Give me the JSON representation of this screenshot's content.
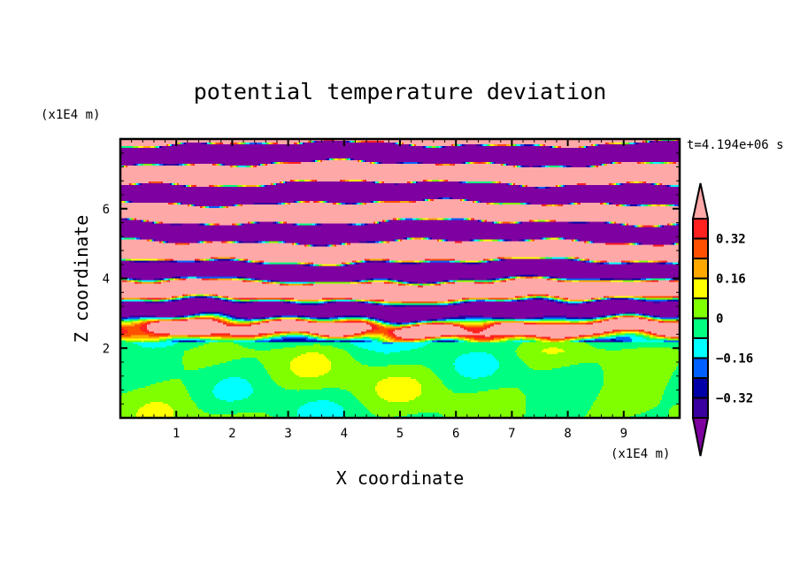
{
  "chart_data": {
    "type": "heatmap",
    "title": "potential temperature deviation",
    "xlabel": "X coordinate",
    "ylabel": "Z coordinate",
    "x_unit": "(x1E4 m)",
    "y_unit": "(x1E4 m)",
    "time_label": "t=4.194e+06 s",
    "xlim": [
      0,
      10
    ],
    "ylim": [
      0,
      8
    ],
    "x_ticks": [
      1,
      2,
      3,
      4,
      5,
      6,
      7,
      8,
      9
    ],
    "y_ticks": [
      2,
      4,
      6
    ],
    "colorbar": {
      "levels": [
        -0.4,
        -0.32,
        -0.24,
        -0.16,
        -0.08,
        0,
        0.08,
        0.16,
        0.24,
        0.32,
        0.4
      ],
      "tick_labels": [
        "0.32",
        "0.16",
        "0",
        "−0.16",
        "−0.32"
      ],
      "tick_values": [
        0.32,
        0.16,
        0,
        -0.16,
        -0.32
      ],
      "colors": [
        "#3a00a0",
        "#0000a8",
        "#0060ff",
        "#00ffff",
        "#00ff80",
        "#80ff00",
        "#ffff00",
        "#ffa800",
        "#ff5000",
        "#ff2020"
      ],
      "over_color": "#ffa8a8",
      "under_color": "#7f00a0",
      "extend": "both"
    },
    "description_regions": [
      {
        "z_range": [
          0,
          2.2
        ],
        "pattern": "weak deviations near 0 (green / yellow-green)"
      },
      {
        "z_range": [
          2.2,
          4.5
        ],
        "pattern": "turbulent mixed layer, full color range"
      },
      {
        "z_range": [
          4.5,
          8
        ],
        "pattern": "alternating horizontal bands saturated above 0.4 and below -0.4"
      }
    ]
  }
}
